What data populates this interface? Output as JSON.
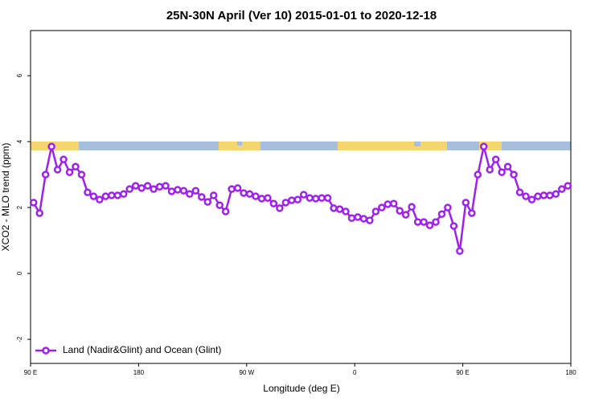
{
  "chart_data": {
    "type": "line",
    "title": "25N-30N April (Ver 10)   2015-01-01 to 2020-12-18",
    "x_label": "Longitude (deg E)",
    "y_label": "XCO2 - MLO trend (ppm)",
    "xlim": [
      90,
      540
    ],
    "xticks": [
      {
        "value": 90,
        "label": "90 E"
      },
      180,
      {
        "value": 270,
        "label": "90 W"
      },
      {
        "value": 360,
        "label": "0"
      },
      {
        "value": 450,
        "label": "90 E"
      },
      {
        "value": 540,
        "label": "180"
      }
    ],
    "ylim": [
      -2.73,
      7.37
    ],
    "yticks": [
      -2,
      0,
      2,
      4,
      6
    ],
    "grid": false,
    "legend_position": "bottom-left",
    "x": [
      92.5,
      97.5,
      102.5,
      107.5,
      112.5,
      117.5,
      122.5,
      127.5,
      132.5,
      137.5,
      142.5,
      147.5,
      152.5,
      157.5,
      162.5,
      167.5,
      172.5,
      177.5,
      182.5,
      187.5,
      192.5,
      197.5,
      202.5,
      207.5,
      212.5,
      217.5,
      222.5,
      227.5,
      232.5,
      237.5,
      242.5,
      247.5,
      252.5,
      257.5,
      262.5,
      267.5,
      272.5,
      277.5,
      282.5,
      287.5,
      292.5,
      297.5,
      302.5,
      307.5,
      312.5,
      317.5,
      322.5,
      327.5,
      332.5,
      337.5,
      342.5,
      347.5,
      352.5,
      357.5,
      362.5,
      367.5,
      372.5,
      377.5,
      382.5,
      387.5,
      392.5,
      397.5,
      402.5,
      407.5,
      412.5,
      417.5,
      422.5,
      427.5,
      432.5,
      437.5,
      442.5,
      447.5,
      452.5,
      457.5,
      462.5,
      467.5,
      472.5,
      477.5,
      482.5,
      487.5,
      492.5,
      497.5,
      502.5,
      507.5,
      512.5,
      517.5,
      522.5,
      527.5,
      532.5,
      537.5
    ],
    "series": [
      {
        "name": "Land (Nadir&Glint) and Ocean (Glint)",
        "color": "#a020f0",
        "values": [
          2.15,
          1.83,
          3.0,
          3.85,
          3.15,
          3.46,
          3.07,
          3.24,
          3.0,
          2.46,
          2.34,
          2.24,
          2.34,
          2.37,
          2.37,
          2.41,
          2.56,
          2.66,
          2.59,
          2.66,
          2.56,
          2.63,
          2.66,
          2.49,
          2.54,
          2.51,
          2.41,
          2.51,
          2.32,
          2.17,
          2.37,
          2.07,
          1.88,
          2.56,
          2.59,
          2.44,
          2.41,
          2.34,
          2.27,
          2.29,
          2.12,
          1.98,
          2.15,
          2.22,
          2.24,
          2.39,
          2.29,
          2.27,
          2.29,
          2.29,
          1.98,
          1.95,
          1.88,
          1.68,
          1.71,
          1.66,
          1.61,
          1.88,
          2.0,
          2.1,
          2.12,
          1.9,
          1.78,
          2.02,
          1.56,
          1.56,
          1.46,
          1.56,
          1.8,
          2.0,
          1.44,
          0.68,
          2.15,
          1.83,
          3.0,
          3.85,
          3.15,
          3.46,
          3.07,
          3.24,
          3.0,
          2.46,
          2.34,
          2.24,
          2.34,
          2.37,
          2.37,
          2.41,
          2.56,
          2.66
        ]
      }
    ]
  }
}
